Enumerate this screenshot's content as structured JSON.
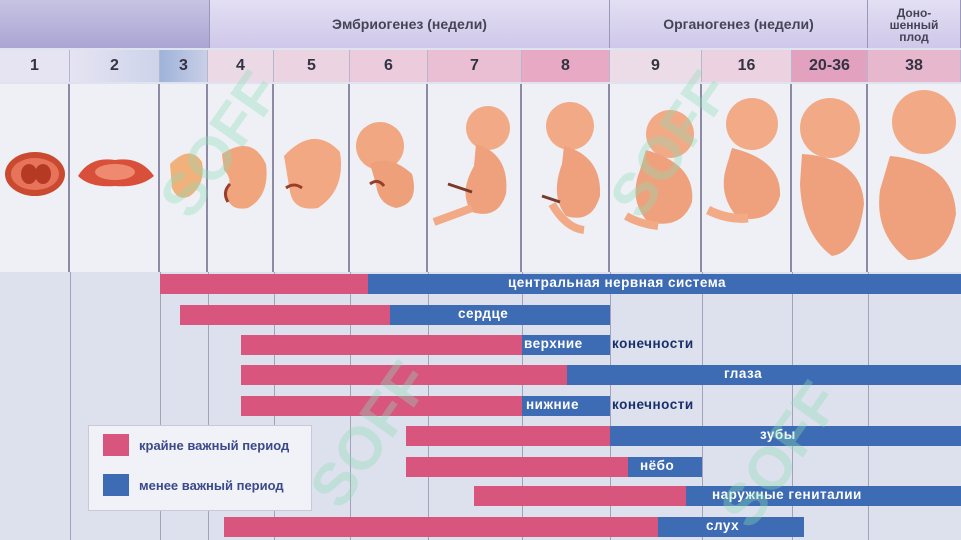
{
  "headers": {
    "embryogenesis": "Эмбриогенез (недели)",
    "organogenesis": "Органогенез (недели)",
    "term_line1": "Доно-",
    "term_line2": "шенный",
    "term_line3": "плод"
  },
  "weeks": [
    "1",
    "2",
    "3",
    "4",
    "5",
    "6",
    "7",
    "8",
    "9",
    "16",
    "20-36",
    "38"
  ],
  "systems": [
    {
      "label": "центральная нервная система"
    },
    {
      "label": "сердце"
    },
    {
      "label_a": "верхние",
      "label_b": "конечности"
    },
    {
      "label": "глаза"
    },
    {
      "label_a": "нижние",
      "label_b": "конечности"
    },
    {
      "label": "зубы"
    },
    {
      "label": "нёбо"
    },
    {
      "label": "наружные гениталии"
    },
    {
      "label": "слух"
    }
  ],
  "legend": {
    "critical": "крайне важный период",
    "less": "менее важный период"
  },
  "colors": {
    "critical": "#d8557e",
    "less": "#3e6cb4"
  },
  "watermark": "SOFF"
}
